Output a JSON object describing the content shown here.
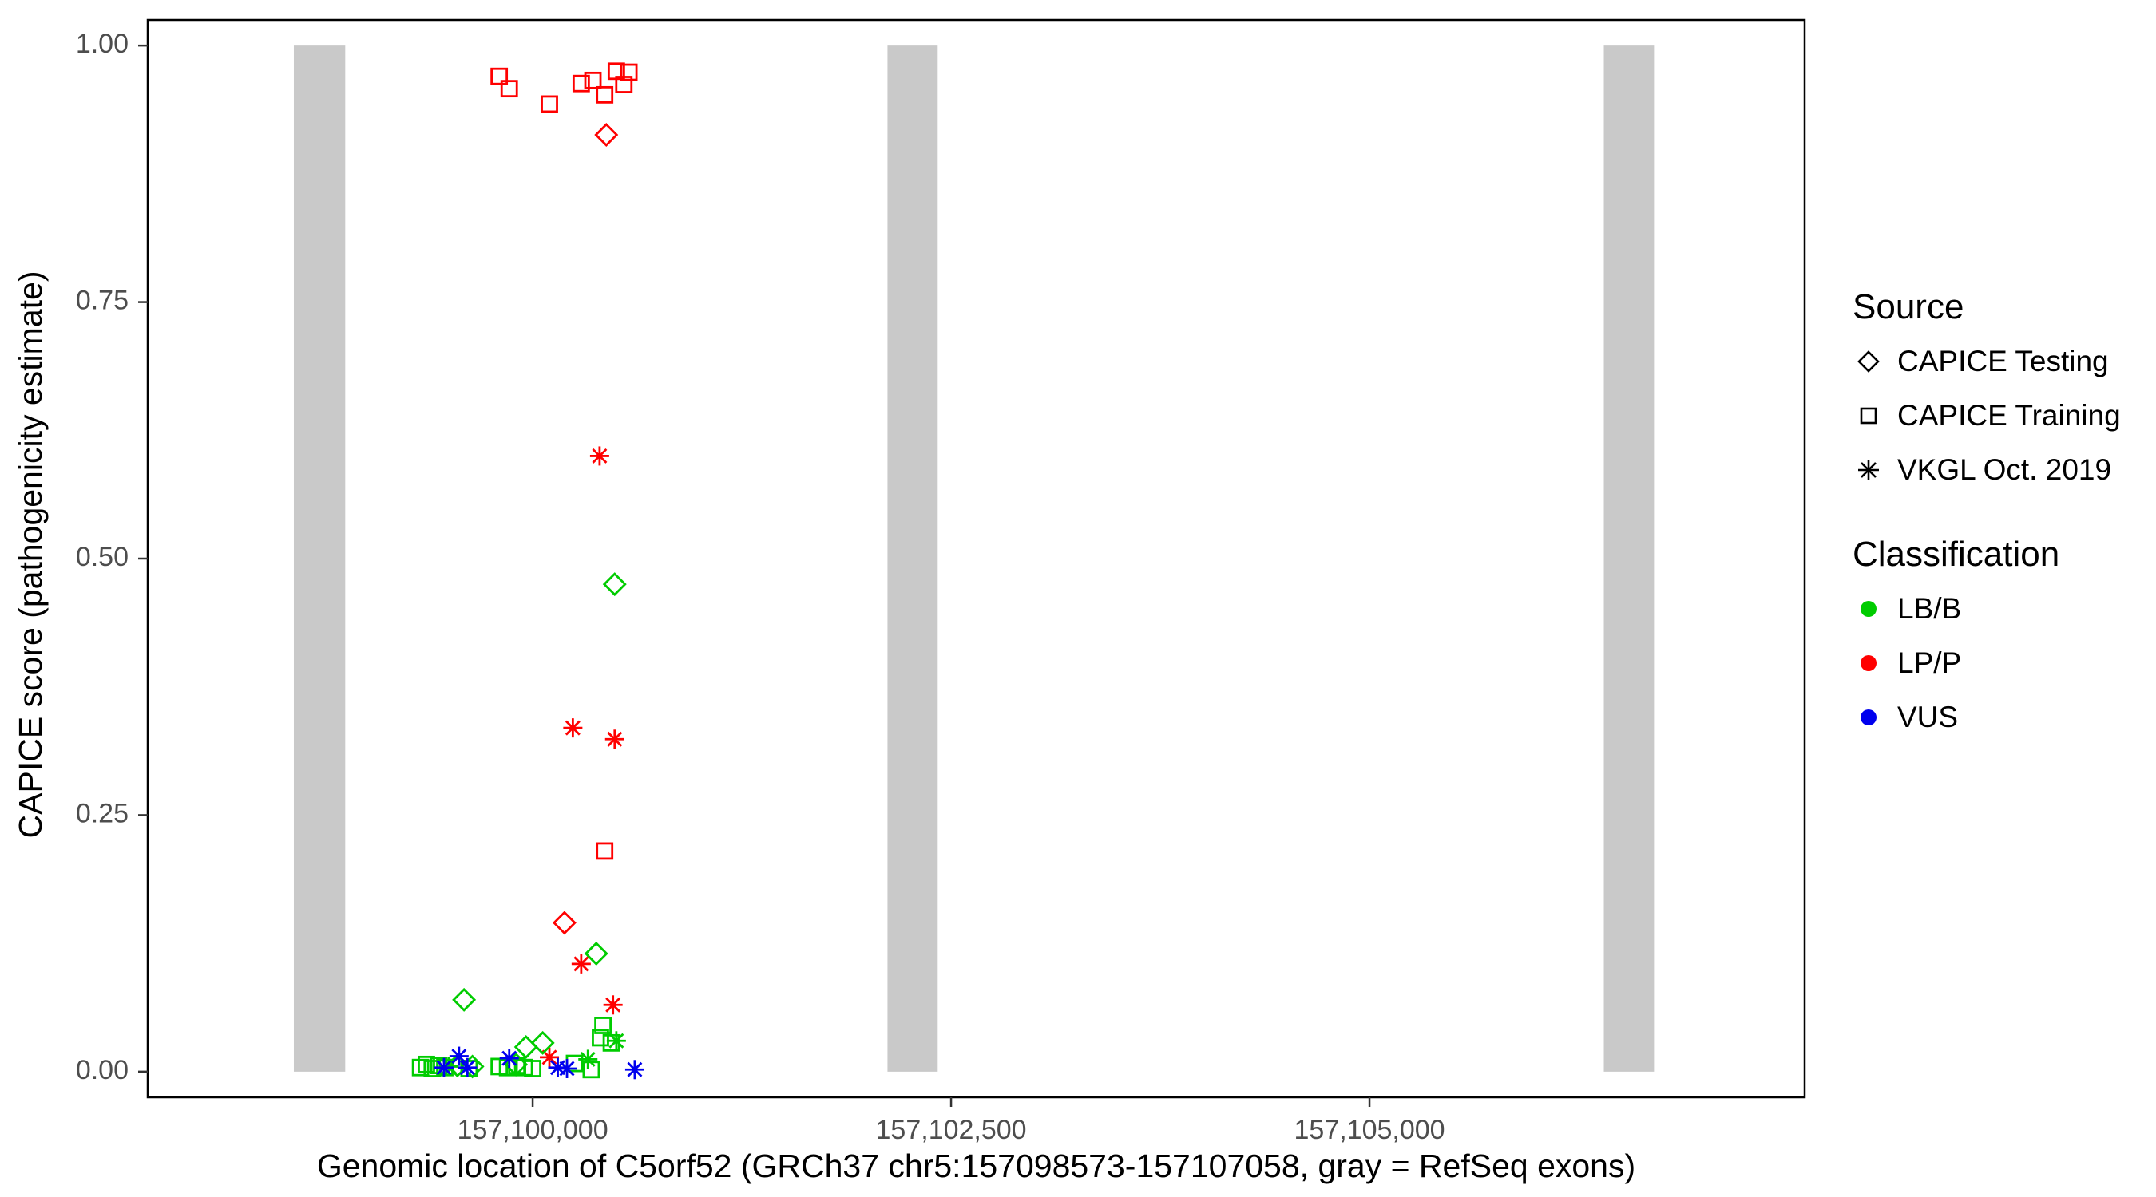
{
  "chart_data": {
    "type": "scatter",
    "title": "",
    "xlabel": "Genomic location of C5orf52 (GRCh37 chr5:157098573-157107058, gray = RefSeq exons)",
    "ylabel": "CAPICE score (pathogenicity estimate)",
    "x_domain": [
      157097700,
      157107600
    ],
    "y_domain": [
      0,
      1
    ],
    "grid": "off",
    "x_ticks": [
      {
        "value": 157100000,
        "label": "157,100,000"
      },
      {
        "value": 157102500,
        "label": "157,102,500"
      },
      {
        "value": 157105000,
        "label": "157,105,000"
      }
    ],
    "y_ticks": [
      {
        "value": 0.0,
        "label": "0.00"
      },
      {
        "value": 0.25,
        "label": "0.25"
      },
      {
        "value": 0.5,
        "label": "0.50"
      },
      {
        "value": 0.75,
        "label": "0.75"
      },
      {
        "value": 1.0,
        "label": "1.00"
      }
    ],
    "exons": [
      {
        "start": 157098573,
        "end": 157098880
      },
      {
        "start": 157102120,
        "end": 157102420
      },
      {
        "start": 157106400,
        "end": 157106700
      }
    ],
    "exon_color": "#C9C9C9",
    "colors": {
      "LB/B": "#00CC00",
      "LP/P": "#FF0000",
      "VUS": "#0000EE"
    },
    "shapes": {
      "CAPICE Testing": "diamond",
      "CAPICE Training": "square",
      "VKGL Oct. 2019": "asterisk"
    },
    "series": [
      {
        "source": "CAPICE Training",
        "classification": "LP/P",
        "points": [
          [
            157099800,
            0.97
          ],
          [
            157099860,
            0.958
          ],
          [
            157100100,
            0.943
          ],
          [
            157100290,
            0.963
          ],
          [
            157100360,
            0.966
          ],
          [
            157100430,
            0.952
          ],
          [
            157100500,
            0.975
          ],
          [
            157100545,
            0.962
          ],
          [
            157100575,
            0.974
          ],
          [
            157100430,
            0.215
          ]
        ]
      },
      {
        "source": "CAPICE Testing",
        "classification": "LP/P",
        "points": [
          [
            157100440,
            0.913
          ],
          [
            157100190,
            0.145
          ]
        ]
      },
      {
        "source": "VKGL Oct. 2019",
        "classification": "LP/P",
        "points": [
          [
            157100400,
            0.6
          ],
          [
            157100240,
            0.335
          ],
          [
            157100490,
            0.324
          ],
          [
            157100290,
            0.105
          ],
          [
            157100480,
            0.065
          ],
          [
            157100100,
            0.014
          ]
        ]
      },
      {
        "source": "CAPICE Testing",
        "classification": "LB/B",
        "points": [
          [
            157100490,
            0.475
          ],
          [
            157100380,
            0.115
          ],
          [
            157099590,
            0.07
          ],
          [
            157099960,
            0.024
          ],
          [
            157100060,
            0.028
          ],
          [
            157099550,
            0.006
          ],
          [
            157099640,
            0.005
          ],
          [
            157099900,
            0.007
          ]
        ]
      },
      {
        "source": "CAPICE Training",
        "classification": "LB/B",
        "points": [
          [
            157099330,
            0.004
          ],
          [
            157099365,
            0.007
          ],
          [
            157099400,
            0.003
          ],
          [
            157099440,
            0.006
          ],
          [
            157099475,
            0.004
          ],
          [
            157099800,
            0.005
          ],
          [
            157099850,
            0.004
          ],
          [
            157099905,
            0.006
          ],
          [
            157099950,
            0.004
          ],
          [
            157100000,
            0.003
          ],
          [
            157100250,
            0.008
          ],
          [
            157100350,
            0.002
          ],
          [
            157100420,
            0.045
          ],
          [
            157100405,
            0.033
          ],
          [
            157099620,
            0.003
          ],
          [
            157100470,
            0.028
          ]
        ]
      },
      {
        "source": "VKGL Oct. 2019",
        "classification": "LB/B",
        "points": [
          [
            157100500,
            0.03
          ],
          [
            157099500,
            0.005
          ],
          [
            157100330,
            0.012
          ]
        ]
      },
      {
        "source": "VKGL Oct. 2019",
        "classification": "VUS",
        "points": [
          [
            157099560,
            0.015
          ],
          [
            157099610,
            0.004
          ],
          [
            157099860,
            0.013
          ],
          [
            157100150,
            0.004
          ],
          [
            157100205,
            0.003
          ],
          [
            157100610,
            0.002
          ],
          [
            157099470,
            0.004
          ]
        ]
      }
    ],
    "legend": {
      "source_title": "Source",
      "source_items": [
        {
          "label": "CAPICE Testing",
          "shape": "diamond"
        },
        {
          "label": "CAPICE Training",
          "shape": "square"
        },
        {
          "label": "VKGL Oct. 2019",
          "shape": "asterisk"
        }
      ],
      "classification_title": "Classification",
      "classification_items": [
        {
          "label": "LB/B",
          "color": "#00CC00"
        },
        {
          "label": "LP/P",
          "color": "#FF0000"
        },
        {
          "label": "VUS",
          "color": "#0000EE"
        }
      ]
    }
  }
}
